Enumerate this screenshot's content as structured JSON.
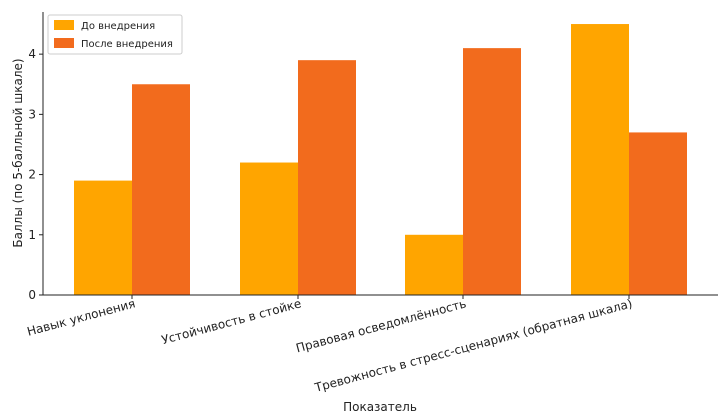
{
  "chart_data": {
    "type": "bar",
    "title": "",
    "xlabel": "Показатель",
    "ylabel": "Баллы (по 5-балльной шкале)",
    "ylim": [
      0,
      4.7
    ],
    "yticks": [
      0,
      1,
      2,
      3,
      4
    ],
    "categories": [
      "Навык уклонения",
      "Устойчивость в стойке",
      "Правовая осведомлённость",
      "Тревожность в стресс-сценариях (обратная шкала)"
    ],
    "series": [
      {
        "name": "До внедрения",
        "color": "#FFA500",
        "values": [
          1.9,
          2.2,
          1.0,
          4.5
        ]
      },
      {
        "name": "После внедрения",
        "color": "#F26B1D",
        "values": [
          3.5,
          3.9,
          4.1,
          2.7
        ]
      }
    ],
    "legend_position": "top-left",
    "grid": false
  }
}
